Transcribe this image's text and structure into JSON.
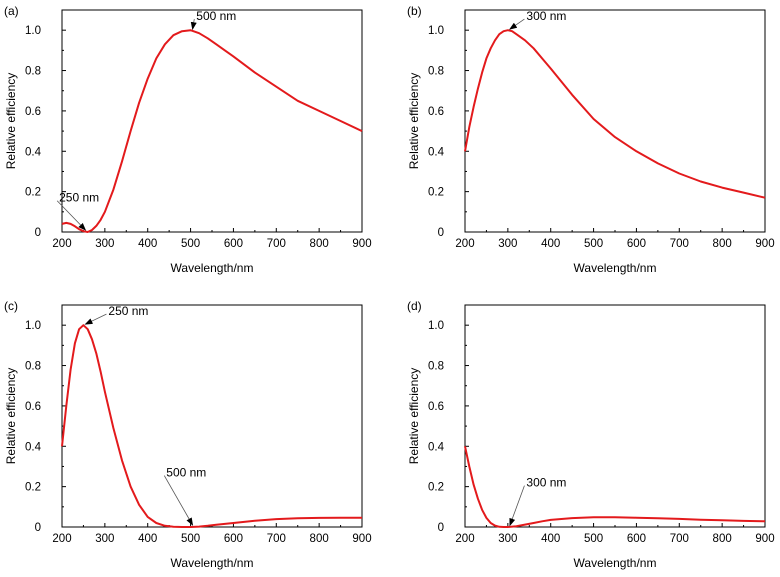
{
  "colors": {
    "curve": "#e31a1c",
    "axis": "#000000",
    "arrow": "#555555"
  },
  "chart_data": [
    {
      "type": "line",
      "panel_label": "(a)",
      "xlabel": "Wavelength/nm",
      "ylabel": "Relative efficiency",
      "xlim": [
        200,
        900
      ],
      "ylim": [
        0,
        1.1
      ],
      "xticks": [
        "200",
        "300",
        "400",
        "500",
        "600",
        "700",
        "800",
        "900"
      ],
      "yticks": [
        "0",
        "0.2",
        "0.4",
        "0.6",
        "0.8",
        "1.0"
      ],
      "grid": false,
      "series": [
        {
          "x": [
            200,
            210,
            220,
            230,
            240,
            250,
            260,
            270,
            280,
            290,
            300,
            320,
            340,
            360,
            380,
            400,
            420,
            440,
            460,
            480,
            500,
            520,
            540,
            560,
            580,
            600,
            650,
            700,
            750,
            800,
            850,
            900
          ],
          "y": [
            0.04,
            0.045,
            0.04,
            0.028,
            0.014,
            0.004,
            0.0,
            0.01,
            0.03,
            0.06,
            0.1,
            0.21,
            0.35,
            0.5,
            0.64,
            0.76,
            0.86,
            0.93,
            0.975,
            0.995,
            1.0,
            0.985,
            0.96,
            0.93,
            0.9,
            0.87,
            0.79,
            0.72,
            0.65,
            0.6,
            0.55,
            0.5
          ]
        }
      ],
      "annotations": [
        {
          "text": "500 nm",
          "x": 500,
          "y": 1.0,
          "text_x": 560,
          "text_y": 1.05
        },
        {
          "text": "250 nm",
          "x": 250,
          "y": 0.005,
          "text_x": 240,
          "text_y": 0.15
        }
      ]
    },
    {
      "type": "line",
      "panel_label": "(b)",
      "xlabel": "Wavelength/nm",
      "ylabel": "Relative efficiency",
      "xlim": [
        200,
        900
      ],
      "ylim": [
        0,
        1.1
      ],
      "xticks": [
        "200",
        "300",
        "400",
        "500",
        "600",
        "700",
        "800",
        "900"
      ],
      "yticks": [
        "0",
        "0.2",
        "0.4",
        "0.6",
        "0.8",
        "1.0"
      ],
      "grid": false,
      "series": [
        {
          "x": [
            200,
            210,
            220,
            230,
            240,
            250,
            260,
            270,
            280,
            290,
            300,
            310,
            320,
            340,
            360,
            380,
            400,
            450,
            500,
            550,
            600,
            650,
            700,
            750,
            800,
            850,
            900
          ],
          "y": [
            0.4,
            0.52,
            0.62,
            0.71,
            0.79,
            0.86,
            0.91,
            0.95,
            0.98,
            0.995,
            1.0,
            0.995,
            0.98,
            0.95,
            0.91,
            0.86,
            0.81,
            0.68,
            0.56,
            0.47,
            0.4,
            0.34,
            0.29,
            0.25,
            0.22,
            0.195,
            0.17
          ]
        }
      ],
      "annotations": [
        {
          "text": "300 nm",
          "x": 300,
          "y": 1.0,
          "text_x": 390,
          "text_y": 1.05
        }
      ]
    },
    {
      "type": "line",
      "panel_label": "(c)",
      "xlabel": "Wavelength/nm",
      "ylabel": "Relative efficiency",
      "xlim": [
        200,
        900
      ],
      "ylim": [
        0,
        1.1
      ],
      "xticks": [
        "200",
        "300",
        "400",
        "500",
        "600",
        "700",
        "800",
        "900"
      ],
      "yticks": [
        "0",
        "0.2",
        "0.4",
        "0.6",
        "0.8",
        "1.0"
      ],
      "grid": false,
      "series": [
        {
          "x": [
            200,
            210,
            220,
            230,
            240,
            250,
            260,
            270,
            280,
            290,
            300,
            320,
            340,
            360,
            380,
            400,
            420,
            440,
            460,
            480,
            500,
            520,
            540,
            560,
            600,
            650,
            700,
            750,
            800,
            850,
            900
          ],
          "y": [
            0.4,
            0.6,
            0.78,
            0.91,
            0.98,
            1.0,
            0.98,
            0.93,
            0.86,
            0.77,
            0.67,
            0.49,
            0.33,
            0.2,
            0.11,
            0.05,
            0.02,
            0.006,
            0.001,
            0.0,
            0.0,
            0.002,
            0.006,
            0.011,
            0.02,
            0.031,
            0.039,
            0.043,
            0.045,
            0.046,
            0.046
          ]
        }
      ],
      "annotations": [
        {
          "text": "250 nm",
          "x": 250,
          "y": 1.0,
          "text_x": 355,
          "text_y": 1.05
        },
        {
          "text": "500 nm",
          "x": 500,
          "y": 0.005,
          "text_x": 490,
          "text_y": 0.25
        }
      ]
    },
    {
      "type": "line",
      "panel_label": "(d)",
      "xlabel": "Wavelength/nm",
      "ylabel": "Relative efficiency",
      "xlim": [
        200,
        900
      ],
      "ylim": [
        0,
        1.1
      ],
      "xticks": [
        "200",
        "300",
        "400",
        "500",
        "600",
        "700",
        "800",
        "900"
      ],
      "yticks": [
        "0",
        "0.2",
        "0.4",
        "0.6",
        "0.8",
        "1.0"
      ],
      "grid": false,
      "series": [
        {
          "x": [
            200,
            210,
            220,
            230,
            240,
            250,
            260,
            270,
            280,
            290,
            300,
            320,
            340,
            360,
            380,
            400,
            450,
            500,
            550,
            600,
            650,
            700,
            750,
            800,
            850,
            900
          ],
          "y": [
            0.4,
            0.3,
            0.21,
            0.14,
            0.085,
            0.045,
            0.02,
            0.007,
            0.001,
            0.0,
            0.0,
            0.004,
            0.012,
            0.02,
            0.028,
            0.035,
            0.044,
            0.048,
            0.048,
            0.046,
            0.043,
            0.04,
            0.036,
            0.033,
            0.03,
            0.028
          ]
        }
      ],
      "annotations": [
        {
          "text": "300 nm",
          "x": 300,
          "y": 0.003,
          "text_x": 390,
          "text_y": 0.2
        }
      ]
    }
  ]
}
